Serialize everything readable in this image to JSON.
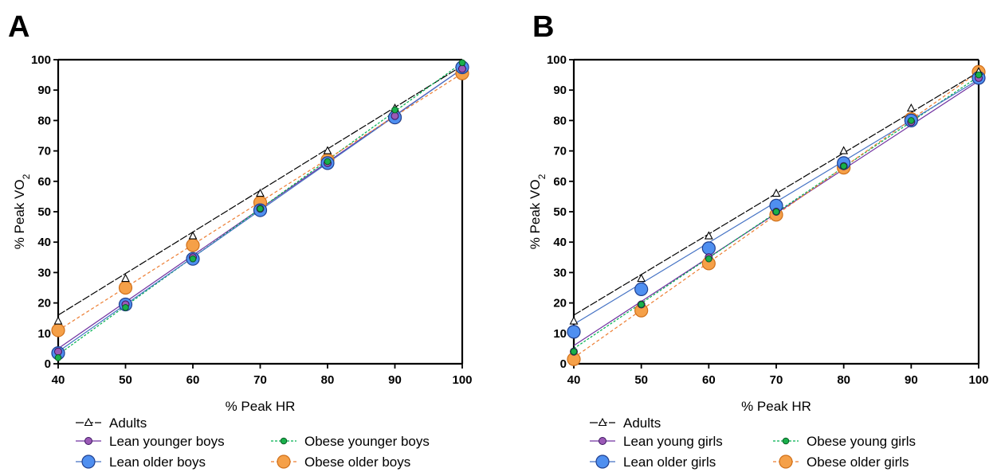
{
  "chart_data": [
    {
      "type": "line",
      "panel_label": "A",
      "xlabel": "% Peak HR",
      "ylabel": "% Peak VO",
      "ylabel_sub": "2",
      "xlim": [
        40,
        100
      ],
      "ylim": [
        0,
        100
      ],
      "x_ticks": [
        40,
        50,
        60,
        70,
        80,
        90,
        100
      ],
      "y_ticks": [
        0,
        10,
        20,
        30,
        40,
        50,
        60,
        70,
        80,
        90,
        100
      ],
      "x": [
        40,
        50,
        60,
        70,
        80,
        90,
        100
      ],
      "legend_placement": "bottom",
      "series": [
        {
          "name": "Adults",
          "values": [
            14,
            28,
            42,
            56,
            70,
            84,
            98
          ],
          "fit": [
            16,
            98
          ],
          "color": "#000000",
          "marker": "triangle",
          "dash": "10,2"
        },
        {
          "name": "Lean younger boys",
          "values": [
            4,
            19.5,
            35,
            51,
            66,
            81.5,
            97
          ],
          "fit": [
            5,
            97
          ],
          "color": "#7030a0",
          "marker": "circle-small",
          "dash": ""
        },
        {
          "name": "Obese younger boys",
          "values": [
            2,
            18.5,
            34.5,
            51,
            66.5,
            83.5,
            99
          ],
          "fit": [
            3,
            99
          ],
          "color": "#00b050",
          "marker": "circle-tiny",
          "dash": "3,2"
        },
        {
          "name": "Lean older boys",
          "values": [
            3.5,
            19.5,
            34.5,
            50.5,
            66,
            81,
            97.5
          ],
          "fit": [
            4,
            97
          ],
          "color": "#4472c4",
          "marker": "circle-large",
          "dash": ""
        },
        {
          "name": "Obese older boys",
          "values": [
            11,
            25,
            39,
            53,
            67,
            81,
            95.5
          ],
          "fit": [
            11,
            95.5
          ],
          "color": "#ed7d31",
          "marker": "circle-large",
          "dash": "4,3"
        }
      ]
    },
    {
      "type": "line",
      "panel_label": "B",
      "xlabel": "% Peak HR",
      "ylabel": "% Peak VO",
      "ylabel_sub": "2",
      "xlim": [
        40,
        100
      ],
      "ylim": [
        0,
        100
      ],
      "x_ticks": [
        40,
        50,
        60,
        70,
        80,
        90,
        100
      ],
      "y_ticks": [
        0,
        10,
        20,
        30,
        40,
        50,
        60,
        70,
        80,
        90,
        100
      ],
      "x": [
        40,
        50,
        60,
        70,
        80,
        90,
        100
      ],
      "legend_placement": "bottom",
      "series": [
        {
          "name": "Adults",
          "values": [
            14,
            28,
            42,
            56,
            70,
            84,
            96
          ],
          "fit": [
            16,
            96
          ],
          "color": "#000000",
          "marker": "triangle",
          "dash": "10,2"
        },
        {
          "name": "Lean young girls",
          "values": [
            4,
            19.5,
            35,
            50,
            65,
            79.5,
            94
          ],
          "fit": [
            6,
            93
          ],
          "color": "#7030a0",
          "marker": "circle-small",
          "dash": ""
        },
        {
          "name": "Obese young girls",
          "values": [
            4,
            19.5,
            34.5,
            50,
            65,
            80,
            95
          ],
          "fit": [
            5,
            94.5
          ],
          "color": "#00b050",
          "marker": "circle-tiny",
          "dash": "3,2"
        },
        {
          "name": "Lean older girls",
          "values": [
            10.5,
            24.5,
            38,
            52,
            66,
            80,
            94
          ],
          "fit": [
            13,
            93.5
          ],
          "color": "#4472c4",
          "marker": "circle-large",
          "dash": ""
        },
        {
          "name": "Obese older girls",
          "values": [
            1.5,
            17.5,
            33,
            49,
            64.5,
            80.5,
            96
          ],
          "fit": [
            2,
            96
          ],
          "color": "#ed7d31",
          "marker": "circle-large",
          "dash": "4,3"
        }
      ]
    }
  ]
}
